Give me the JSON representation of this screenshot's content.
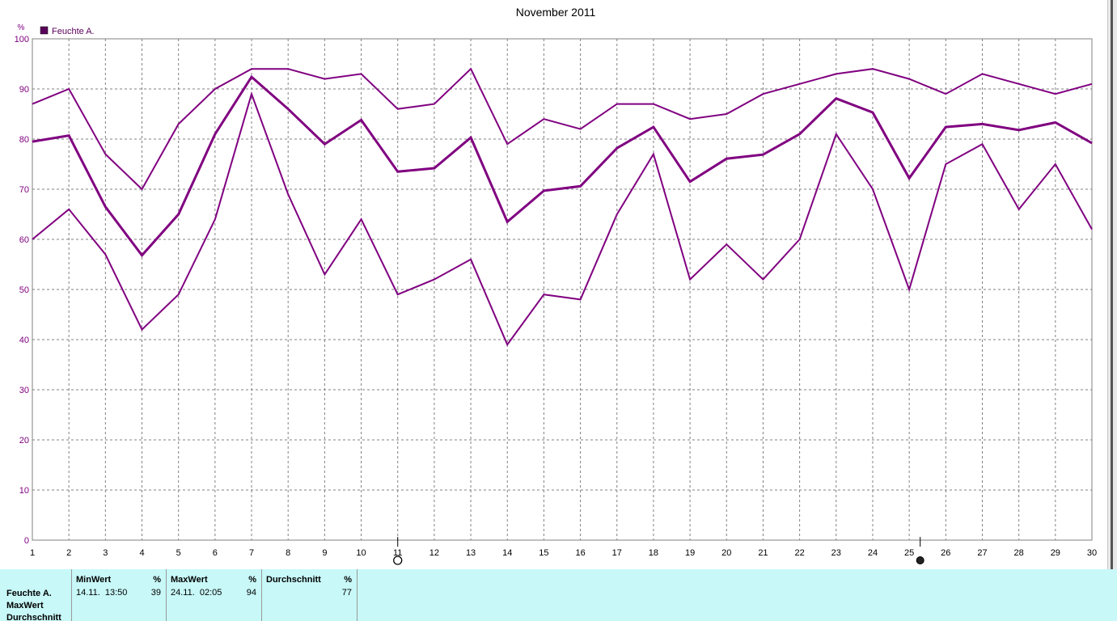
{
  "chart_data": {
    "type": "line",
    "title": "November 2011",
    "ylabel": "%",
    "ylim": [
      0,
      100
    ],
    "yticks": [
      0,
      10,
      20,
      30,
      40,
      50,
      60,
      70,
      80,
      90,
      100
    ],
    "x": [
      1,
      2,
      3,
      4,
      5,
      6,
      7,
      8,
      9,
      10,
      11,
      12,
      13,
      14,
      15,
      16,
      17,
      18,
      19,
      20,
      21,
      22,
      23,
      24,
      25,
      26,
      27,
      28,
      29,
      30
    ],
    "legend": {
      "placement": "top-left",
      "label": "Feuchte A."
    },
    "grid": true,
    "color": "#800080",
    "series": [
      {
        "role": "max",
        "values": [
          87,
          90,
          77,
          70,
          83,
          90,
          94,
          94,
          92,
          93,
          86,
          87,
          94,
          79,
          84,
          82,
          87,
          87,
          84,
          85,
          89,
          91,
          93,
          94,
          92,
          89,
          93,
          91,
          89,
          91
        ]
      },
      {
        "role": "avg",
        "values": [
          79.5,
          80.7,
          66.5,
          56.8,
          65,
          81,
          92.4,
          86,
          79,
          83.8,
          73.5,
          74.2,
          80.3,
          63.5,
          69.7,
          70.6,
          78.2,
          82.4,
          71.5,
          76.1,
          76.9,
          81,
          88.1,
          85.3,
          72.2,
          82.4,
          83,
          81.8,
          83.3,
          79.2
        ]
      },
      {
        "role": "min",
        "values": [
          60,
          66,
          57,
          42,
          49,
          64,
          89,
          69,
          53,
          64,
          49,
          52,
          56,
          39,
          49,
          48,
          65,
          77,
          52,
          59,
          52,
          60,
          81,
          70,
          50,
          75,
          79,
          66,
          75,
          62
        ]
      }
    ],
    "markers": [
      {
        "type": "open-circle",
        "x": 11
      },
      {
        "type": "filled-circle",
        "x": 25.3
      }
    ]
  },
  "stats": {
    "row_labels": [
      "Feuchte A.",
      "MaxWert",
      "Durchschnitt"
    ],
    "columns": [
      {
        "header": "MinWert",
        "unit": "%",
        "when": "14.11.  13:50",
        "value": "39"
      },
      {
        "header": "MaxWert",
        "unit": "%",
        "when": "24.11.  02:05",
        "value": "94"
      },
      {
        "header": "Durchschnitt",
        "unit": "%",
        "when": "",
        "value": "77"
      }
    ]
  }
}
